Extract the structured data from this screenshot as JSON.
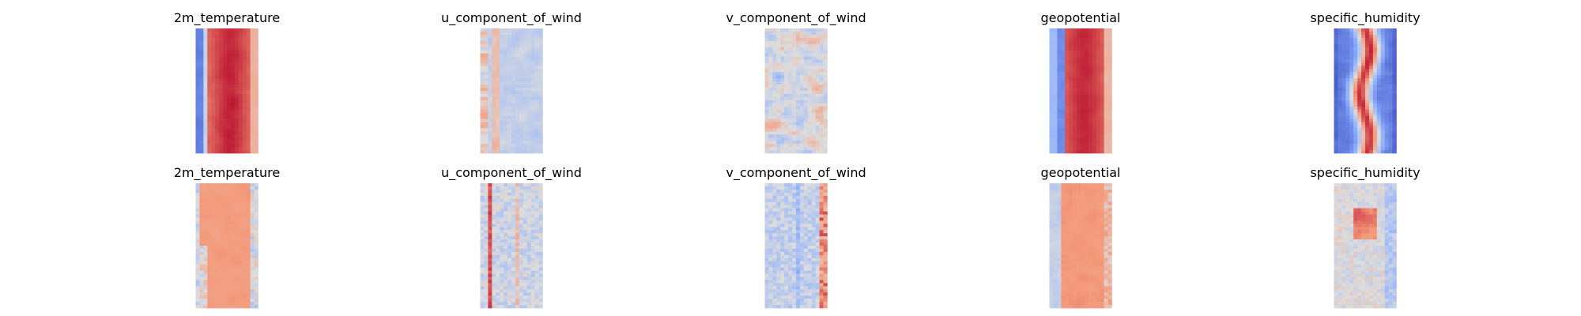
{
  "chart_data": {
    "type": "heatmap",
    "layout": "grid of 2 rows x 5 columns",
    "colormap": "coolwarm",
    "axes_visible": false,
    "colors": {
      "cold": "#3b4cc0",
      "neutral": "#dddddd",
      "warm": "#b40426"
    },
    "panels": [
      {
        "title": "2m_temperature",
        "pattern": "temperature"
      },
      {
        "title": "u_component_of_wind",
        "pattern": "uwind"
      },
      {
        "title": "v_component_of_wind",
        "pattern": "vwind"
      },
      {
        "title": "geopotential",
        "pattern": "geopotential"
      },
      {
        "title": "specific_humidity",
        "pattern": "humidity"
      },
      {
        "title": "2m_temperature",
        "pattern": "temperature_diff"
      },
      {
        "title": "u_component_of_wind",
        "pattern": "uwind_diff"
      },
      {
        "title": "v_component_of_wind",
        "pattern": "vwind_diff"
      },
      {
        "title": "geopotential",
        "pattern": "geopotential_diff"
      },
      {
        "title": "specific_humidity",
        "pattern": "humidity_diff"
      }
    ]
  }
}
